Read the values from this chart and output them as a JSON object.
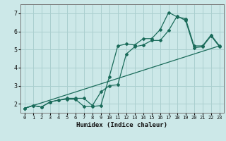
{
  "xlabel": "Humidex (Indice chaleur)",
  "bg_color": "#cce8e8",
  "line_color": "#1a6b5a",
  "grid_color": "#aacfcf",
  "xlim": [
    -0.5,
    23.5
  ],
  "ylim": [
    1.5,
    7.5
  ],
  "yticks": [
    2,
    3,
    4,
    5,
    6,
    7
  ],
  "xticks": [
    0,
    1,
    2,
    3,
    4,
    5,
    6,
    7,
    8,
    9,
    10,
    11,
    12,
    13,
    14,
    15,
    16,
    17,
    18,
    19,
    20,
    21,
    22,
    23
  ],
  "line1_x": [
    0,
    1,
    2,
    3,
    4,
    5,
    6,
    7,
    8,
    9,
    10,
    11,
    12,
    13,
    14,
    15,
    16,
    17,
    18,
    19,
    20,
    21,
    22,
    23
  ],
  "line1_y": [
    1.75,
    1.9,
    1.82,
    2.1,
    2.2,
    2.25,
    2.25,
    1.85,
    1.85,
    1.9,
    3.5,
    5.2,
    5.3,
    5.25,
    5.6,
    5.6,
    6.1,
    7.05,
    6.8,
    6.7,
    5.2,
    5.2,
    5.8,
    5.2
  ],
  "line2_x": [
    0,
    1,
    2,
    3,
    4,
    5,
    6,
    7,
    8,
    9,
    10,
    11,
    12,
    13,
    14,
    15,
    16,
    17,
    18,
    19,
    20,
    21,
    22,
    23
  ],
  "line2_y": [
    1.75,
    1.9,
    1.82,
    2.1,
    2.2,
    2.3,
    2.3,
    2.3,
    1.9,
    2.65,
    3.0,
    3.05,
    4.75,
    5.15,
    5.25,
    5.5,
    5.5,
    6.05,
    6.85,
    6.6,
    5.1,
    5.15,
    5.75,
    5.15
  ],
  "line3_x": [
    0,
    23
  ],
  "line3_y": [
    1.75,
    5.2
  ]
}
